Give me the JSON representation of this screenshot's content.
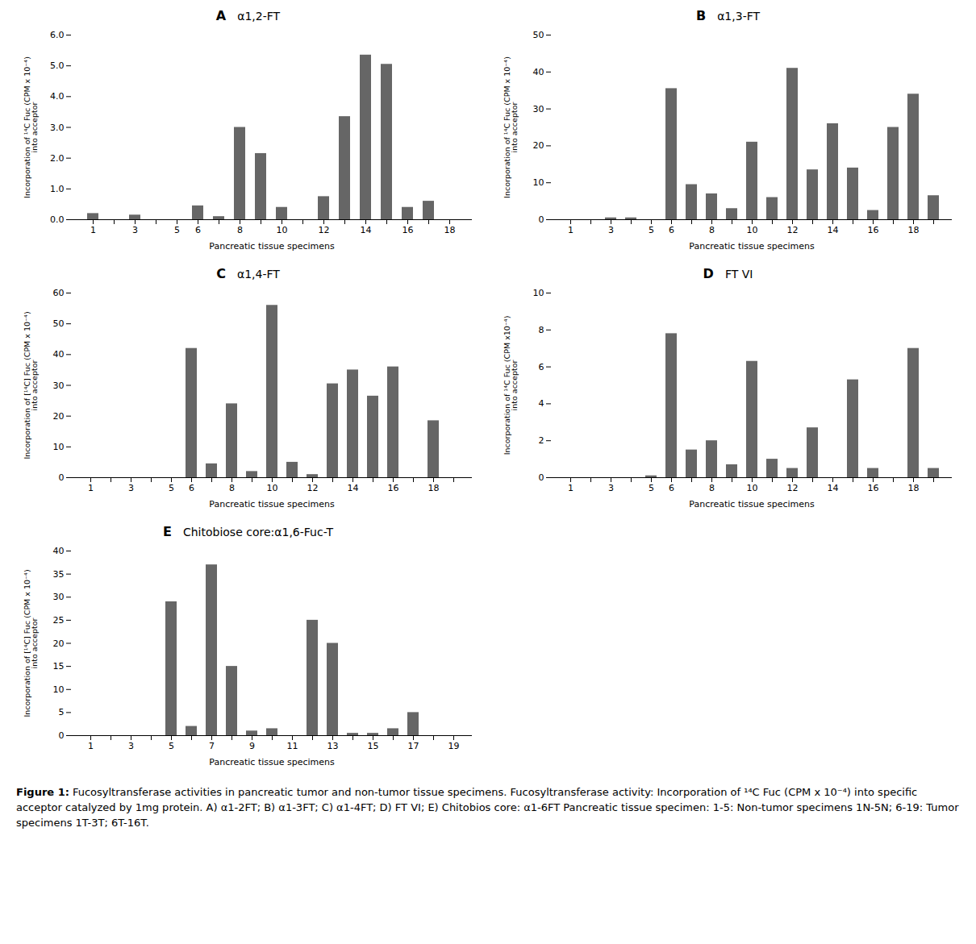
{
  "chart_data": [
    {
      "type": "bar",
      "title": "A",
      "subtitle": "α1,2-FT",
      "categories": [
        "1",
        null,
        "3",
        null,
        "5",
        "6",
        null,
        "8",
        null,
        "10",
        null,
        "12",
        null,
        "14",
        null,
        "16",
        null,
        "18"
      ],
      "values": [
        0.2,
        0.0,
        0.15,
        0.0,
        0.0,
        0.45,
        0.1,
        3.0,
        2.15,
        0.4,
        0.0,
        0.75,
        3.35,
        5.35,
        5.05,
        0.4,
        0.6,
        0.0
      ],
      "color": "#666666",
      "ylim": [
        0,
        6
      ],
      "yticks": [
        0,
        1,
        2,
        3,
        4,
        5,
        6
      ],
      "ylabel": "Incorporation of ¹⁴C Fuc (CPM x 10⁻⁴)\ninto acceptor",
      "xlabel": "Pancreatic tissue specimens"
    },
    {
      "type": "bar",
      "title": "B",
      "subtitle": "α1,3-FT",
      "categories": [
        "1",
        null,
        "3",
        null,
        "5",
        "6",
        null,
        "8",
        null,
        "10",
        null,
        "12",
        null,
        "14",
        null,
        "16",
        null,
        "18",
        null
      ],
      "values": [
        0.0,
        0.0,
        0.5,
        0.5,
        0.0,
        35.5,
        9.5,
        7.0,
        3.0,
        21.0,
        6.0,
        41.0,
        13.5,
        26.0,
        14.0,
        2.5,
        25.0,
        34.0,
        6.5
      ],
      "color": "#666666",
      "ylim": [
        0,
        50
      ],
      "yticks": [
        0,
        10,
        20,
        30,
        40,
        50
      ],
      "ylabel": "Incorporation of ¹⁴C Fuc (CPM x 10⁻⁴)\ninto acceptor",
      "xlabel": "Pancreatic tissue specimens"
    },
    {
      "type": "bar",
      "title": "C",
      "subtitle": "α1,4-FT",
      "categories": [
        "1",
        null,
        "3",
        null,
        "5",
        "6",
        null,
        "8",
        null,
        "10",
        null,
        "12",
        null,
        "14",
        null,
        "16",
        null,
        "18",
        null
      ],
      "values": [
        0.0,
        0.0,
        0.0,
        0.0,
        0.0,
        42.0,
        4.5,
        24.0,
        2.0,
        56.0,
        5.0,
        1.0,
        30.5,
        35.0,
        26.5,
        36.0,
        0.0,
        18.5,
        0.0
      ],
      "color": "#666666",
      "ylim": [
        0,
        60
      ],
      "yticks": [
        0,
        10,
        20,
        30,
        40,
        50,
        60
      ],
      "ylabel": "Incorporation of [¹⁴C] Fuc (CPM x 10⁻⁴)\ninto acceptor",
      "xlabel": "Pancreatic tissue specimens"
    },
    {
      "type": "bar",
      "title": "D",
      "subtitle": "FT VI",
      "categories": [
        "1",
        null,
        "3",
        null,
        "5",
        "6",
        null,
        "8",
        null,
        "10",
        null,
        "12",
        null,
        "14",
        null,
        "16",
        null,
        "18",
        null
      ],
      "values": [
        0.0,
        0.0,
        0.0,
        0.0,
        0.1,
        7.8,
        1.5,
        2.0,
        0.7,
        6.3,
        1.0,
        0.5,
        2.7,
        0.0,
        5.3,
        0.5,
        0.0,
        7.0,
        0.5
      ],
      "color": "#666666",
      "ylim": [
        0,
        10
      ],
      "yticks": [
        0,
        2,
        4,
        6,
        8,
        10
      ],
      "ylabel": "Incorporation of ¹⁴C Fuc (CPM x10⁻⁴)\ninto acceptor",
      "xlabel": "Pancreatic tissue specimens"
    },
    {
      "type": "bar",
      "title": "E",
      "subtitle": "Chitobiose core:α1,6-Fuc-T",
      "categories": [
        "1",
        null,
        "3",
        null,
        "5",
        null,
        "7",
        null,
        "9",
        null,
        "11",
        null,
        "13",
        null,
        "15",
        null,
        "17",
        null,
        "19"
      ],
      "values": [
        0.0,
        0.0,
        0.0,
        0.0,
        29.0,
        2.0,
        37.0,
        15.0,
        1.0,
        1.5,
        0.0,
        25.0,
        20.0,
        0.5,
        0.5,
        1.5,
        5.0,
        0.0,
        0.0
      ],
      "color": "#666666",
      "ylim": [
        0,
        40
      ],
      "yticks": [
        0,
        5,
        10,
        15,
        20,
        25,
        30,
        35,
        40
      ],
      "ylabel": "Incorporation of [¹⁴C] Fuc (CPM x 10⁻⁴)\ninto acceptor",
      "xlabel": "Pancreatic tissue specimens"
    }
  ],
  "caption": {
    "bold": "Figure 1:",
    "text": "Fucosyltransferase activities in pancreatic tumor and non-tumor tissue specimens. Fucosyltransferase activity: Incorporation of ¹⁴C Fuc (CPM x 10⁻⁴) into specific acceptor catalyzed by 1mg protein. A) α1-2FT; B) α1-3FT; C) α1-4FT; D) FT VI; E) Chitobios core: α1-6FT Pancreatic tissue specimen: 1-5: Non-tumor specimens 1N-5N; 6-19: Tumor specimens 1T-3T; 6T-16T."
  }
}
